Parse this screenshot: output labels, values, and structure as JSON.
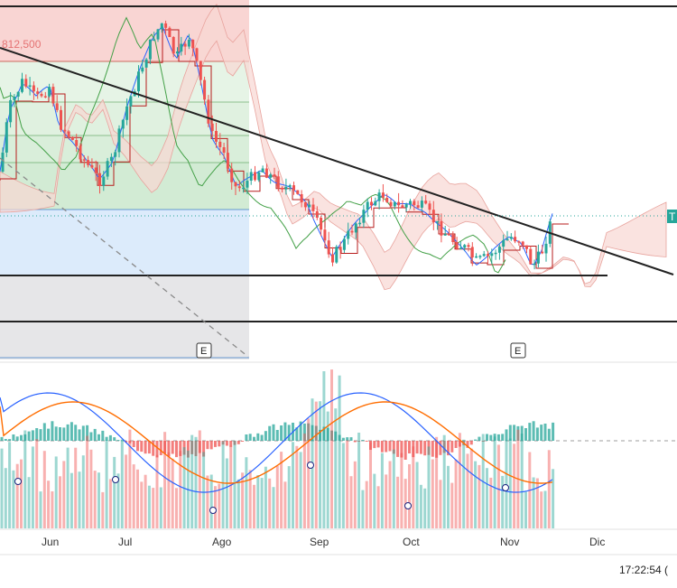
{
  "chart_data": {
    "type": "candlestick",
    "price_label": "812,500",
    "axis_tag": "T",
    "x_ticks": [
      "Jun",
      "Jul",
      "Ago",
      "Sep",
      "Oct",
      "Nov",
      "Dic"
    ],
    "event_markers": [
      "E",
      "E"
    ],
    "clock": "17:22:54 (",
    "colors": {
      "up": "#26a69a",
      "down": "#ef5350",
      "macd": "#2962ff",
      "signal": "#ff6d00",
      "kijun": "#b71c1c",
      "tenkan": "#2962ff",
      "chikou": "#43a047",
      "cloud_red": "#f8d7d3",
      "cloud_green": "#d5ecd6",
      "zone_red": "#f9d5d3",
      "zone_green": "#e4f3e4",
      "zone_blue": "#dcebfb",
      "zone_grey": "#e3e3e5"
    }
  }
}
